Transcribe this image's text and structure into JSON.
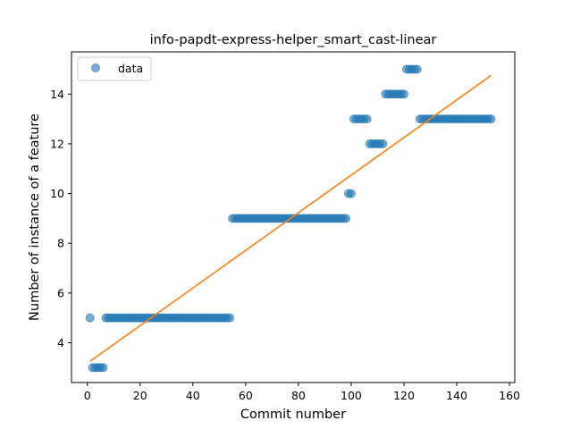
{
  "chart_data": {
    "type": "scatter",
    "title": "info-papdt-express-helper_smart_cast-linear",
    "xlabel": "Commit number",
    "ylabel": "Number of instance of a feature",
    "xlim": [
      -6,
      162
    ],
    "ylim": [
      2.4,
      15.7
    ],
    "xticks": [
      0,
      20,
      40,
      60,
      80,
      100,
      120,
      140,
      160
    ],
    "yticks": [
      4,
      6,
      8,
      10,
      12,
      14
    ],
    "legend": {
      "position": "top-left",
      "entries": [
        "data"
      ]
    },
    "grid": false,
    "colors": {
      "data": "#1f77b4",
      "fit": "#ff7f0e"
    },
    "series": [
      {
        "name": "data",
        "kind": "points",
        "x": [
          1,
          2,
          3,
          4,
          5,
          6,
          7,
          8,
          9,
          10,
          11,
          12,
          13,
          14,
          15,
          16,
          17,
          18,
          19,
          20,
          21,
          22,
          23,
          24,
          25,
          26,
          27,
          28,
          29,
          30,
          31,
          32,
          33,
          34,
          35,
          36,
          37,
          38,
          39,
          40,
          41,
          42,
          43,
          44,
          45,
          46,
          47,
          48,
          49,
          50,
          51,
          52,
          53,
          54,
          55,
          56,
          57,
          58,
          59,
          60,
          61,
          62,
          63,
          64,
          65,
          66,
          67,
          68,
          69,
          70,
          71,
          72,
          73,
          74,
          75,
          76,
          77,
          78,
          79,
          80,
          81,
          82,
          83,
          84,
          85,
          86,
          87,
          88,
          89,
          90,
          91,
          92,
          93,
          94,
          95,
          96,
          97,
          98,
          99,
          100,
          101,
          102,
          103,
          104,
          105,
          106,
          107,
          108,
          109,
          110,
          111,
          112,
          113,
          114,
          115,
          116,
          117,
          118,
          119,
          120,
          121,
          122,
          123,
          124,
          125,
          126,
          127,
          128,
          129,
          130,
          131,
          132,
          133,
          134,
          135,
          136,
          137,
          138,
          139,
          140,
          141,
          142,
          143,
          144,
          145,
          146,
          147,
          148,
          149,
          150,
          151,
          152,
          153
        ],
        "y": [
          5,
          3,
          3,
          3,
          3,
          3,
          5,
          5,
          5,
          5,
          5,
          5,
          5,
          5,
          5,
          5,
          5,
          5,
          5,
          5,
          5,
          5,
          5,
          5,
          5,
          5,
          5,
          5,
          5,
          5,
          5,
          5,
          5,
          5,
          5,
          5,
          5,
          5,
          5,
          5,
          5,
          5,
          5,
          5,
          5,
          5,
          5,
          5,
          5,
          5,
          5,
          5,
          5,
          5,
          9,
          9,
          9,
          9,
          9,
          9,
          9,
          9,
          9,
          9,
          9,
          9,
          9,
          9,
          9,
          9,
          9,
          9,
          9,
          9,
          9,
          9,
          9,
          9,
          9,
          9,
          9,
          9,
          9,
          9,
          9,
          9,
          9,
          9,
          9,
          9,
          9,
          9,
          9,
          9,
          9,
          9,
          9,
          9,
          10,
          10,
          13,
          13,
          13,
          13,
          13,
          13,
          12,
          12,
          12,
          12,
          12,
          12,
          14,
          14,
          14,
          14,
          14,
          14,
          14,
          14,
          15,
          15,
          15,
          15,
          15,
          13,
          13,
          13,
          13,
          13,
          13,
          13,
          13,
          13,
          13,
          13,
          13,
          13,
          13,
          13,
          13,
          13,
          13,
          13,
          13,
          13,
          13,
          13,
          13,
          13,
          13,
          13,
          13
        ]
      },
      {
        "kind": "line",
        "x": [
          1,
          153
        ],
        "y": [
          3.25,
          14.75
        ]
      }
    ]
  }
}
